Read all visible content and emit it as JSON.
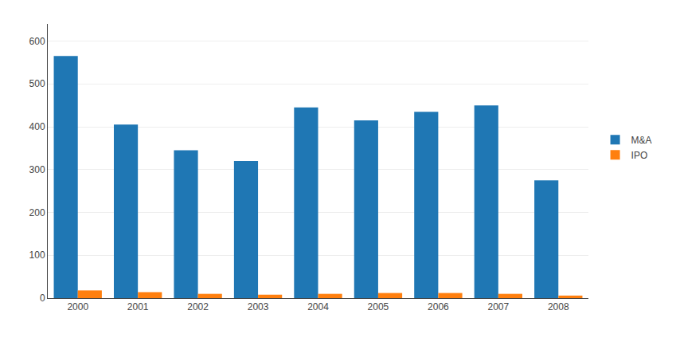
{
  "chart_data": {
    "type": "bar",
    "categories": [
      "2000",
      "2001",
      "2002",
      "2003",
      "2004",
      "2005",
      "2006",
      "2007",
      "2008"
    ],
    "series": [
      {
        "name": "M&A",
        "values": [
          565,
          405,
          345,
          320,
          445,
          415,
          435,
          450,
          275
        ]
      },
      {
        "name": "IPO",
        "values": [
          18,
          14,
          10,
          8,
          10,
          12,
          12,
          10,
          6
        ]
      }
    ],
    "ylim": [
      0,
      640
    ],
    "yticks": [
      0,
      100,
      200,
      300,
      400,
      500,
      600
    ],
    "grid": true,
    "legend": "right"
  }
}
